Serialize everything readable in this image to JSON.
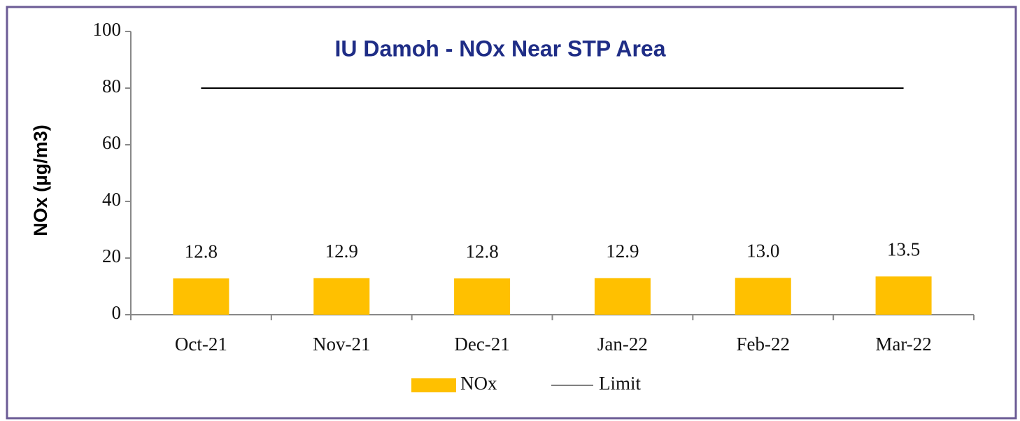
{
  "chart_data": {
    "type": "bar",
    "title": "IU Damoh - NOx  Near STP Area",
    "y_label": "NOx (µg/m3)",
    "categories": [
      "Oct-21",
      "Nov-21",
      "Dec-21",
      "Jan-22",
      "Feb-22",
      "Mar-22"
    ],
    "series": [
      {
        "name": "NOx",
        "color": "#ffc000",
        "type": "bar",
        "values": [
          12.8,
          12.9,
          12.8,
          12.9,
          13.0,
          13.5
        ],
        "value_labels": [
          "12.8",
          "12.9",
          "12.8",
          "12.9",
          "13.0",
          "13.5"
        ]
      },
      {
        "name": "Limit",
        "color": "#000000",
        "type": "line",
        "values": [
          80,
          80,
          80,
          80,
          80,
          80
        ]
      }
    ],
    "ylim": [
      0,
      100
    ],
    "yticks": [
      0,
      20,
      40,
      60,
      80,
      100
    ],
    "grid": false,
    "legend": "bottom"
  }
}
